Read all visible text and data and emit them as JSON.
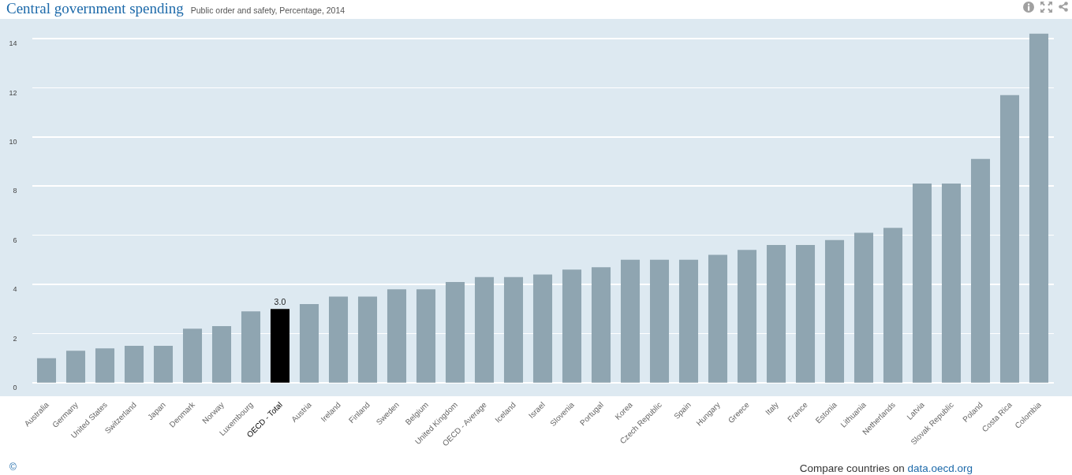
{
  "chart_data": {
    "type": "bar",
    "title": "Central government spending",
    "subtitle": "Public order and safety, Percentage, 2014",
    "categories": [
      "Australia",
      "Germany",
      "United States",
      "Switzerland",
      "Japan",
      "Denmark",
      "Norway",
      "Luxembourg",
      "OECD - Total",
      "Austria",
      "Ireland",
      "Finland",
      "Sweden",
      "Belgium",
      "United Kingdom",
      "OECD - Average",
      "Iceland",
      "Israel",
      "Slovenia",
      "Portugal",
      "Korea",
      "Czech Republic",
      "Spain",
      "Hungary",
      "Greece",
      "Italy",
      "France",
      "Estonia",
      "Lithuania",
      "Netherlands",
      "Latvia",
      "Slovak Republic",
      "Poland",
      "Costa Rica",
      "Colombia"
    ],
    "values": [
      1.0,
      1.3,
      1.4,
      1.5,
      1.5,
      2.2,
      2.3,
      2.9,
      3.0,
      3.2,
      3.5,
      3.5,
      3.8,
      3.8,
      4.1,
      4.3,
      4.3,
      4.4,
      4.6,
      4.7,
      5.0,
      5.0,
      5.0,
      5.2,
      5.4,
      5.6,
      5.6,
      5.8,
      6.1,
      6.3,
      8.1,
      8.1,
      9.1,
      11.7,
      14.2
    ],
    "colors": [
      "#8fa5b1",
      "#8fa5b1",
      "#8fa5b1",
      "#8fa5b1",
      "#8fa5b1",
      "#8fa5b1",
      "#8fa5b1",
      "#8fa5b1",
      "#000000",
      "#8fa5b1",
      "#8fa5b1",
      "#8fa5b1",
      "#8fa5b1",
      "#8fa5b1",
      "#8fa5b1",
      "#8fa5b1",
      "#8fa5b1",
      "#8fa5b1",
      "#8fa5b1",
      "#8fa5b1",
      "#8fa5b1",
      "#8fa5b1",
      "#8fa5b1",
      "#8fa5b1",
      "#8fa5b1",
      "#8fa5b1",
      "#8fa5b1",
      "#8fa5b1",
      "#8fa5b1",
      "#8fa5b1",
      "#8fa5b1",
      "#8fa5b1",
      "#8fa5b1",
      "#8fa5b1",
      "#8fa5b1"
    ],
    "value_labels": [
      null,
      null,
      null,
      null,
      null,
      null,
      null,
      null,
      "3.0",
      null,
      null,
      null,
      null,
      null,
      null,
      null,
      null,
      null,
      null,
      null,
      null,
      null,
      null,
      null,
      null,
      null,
      null,
      null,
      null,
      null,
      null,
      null,
      null,
      null,
      null
    ],
    "ylim": [
      -0.55,
      14.8
    ],
    "yticks": [
      0,
      2,
      4,
      6,
      8,
      10,
      12,
      14
    ],
    "grid": "y",
    "annotations": [
      "©",
      "Compare countries on",
      "data.oecd.org"
    ]
  }
}
